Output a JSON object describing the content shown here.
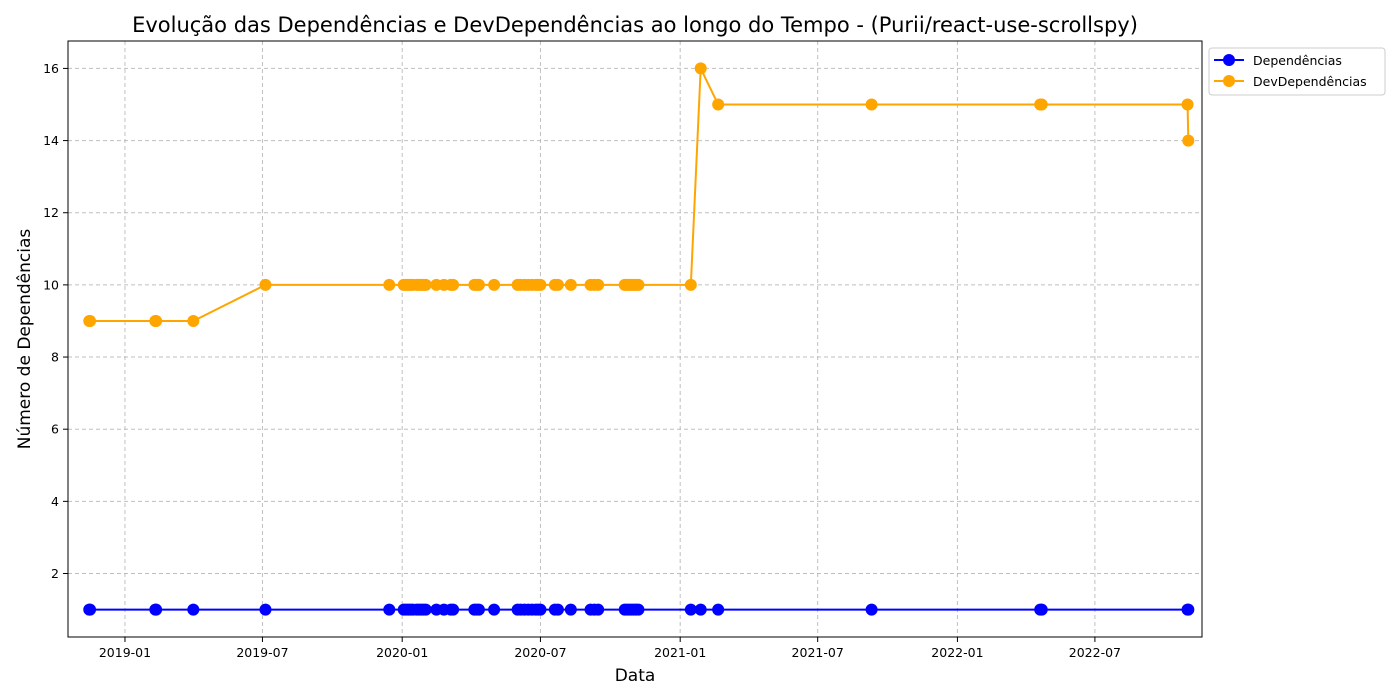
{
  "chart_data": {
    "type": "line",
    "title": "Evolução das Dependências e DevDependências ao longo do Tempo - (Purii/react-use-scrollspy)",
    "xlabel": "Data",
    "ylabel": "Número de Dependências",
    "x_axis_type": "date",
    "xlim": [
      "2018-10-18",
      "2022-11-19"
    ],
    "ylim": [
      0.24,
      16.76
    ],
    "x_ticks": [
      {
        "date": "2019-01-01",
        "label": "2019-01"
      },
      {
        "date": "2019-07-01",
        "label": "2019-07"
      },
      {
        "date": "2020-01-01",
        "label": "2020-01"
      },
      {
        "date": "2020-07-01",
        "label": "2020-07"
      },
      {
        "date": "2021-01-01",
        "label": "2021-01"
      },
      {
        "date": "2021-07-01",
        "label": "2021-07"
      },
      {
        "date": "2022-01-01",
        "label": "2022-01"
      },
      {
        "date": "2022-07-01",
        "label": "2022-07"
      }
    ],
    "y_ticks": [
      2,
      4,
      6,
      8,
      10,
      12,
      14,
      16
    ],
    "grid": true,
    "legend_position": "outside top-right",
    "x": [
      "2018-11-15",
      "2018-11-16",
      "2019-02-10",
      "2019-02-11",
      "2019-04-01",
      "2019-07-05",
      "2019-12-15",
      "2020-01-03",
      "2020-01-06",
      "2020-01-09",
      "2020-01-12",
      "2020-01-15",
      "2020-01-20",
      "2020-01-23",
      "2020-01-26",
      "2020-01-29",
      "2020-02-01",
      "2020-02-15",
      "2020-02-25",
      "2020-03-05",
      "2020-03-08",
      "2020-04-05",
      "2020-04-08",
      "2020-04-11",
      "2020-05-01",
      "2020-06-01",
      "2020-06-05",
      "2020-06-10",
      "2020-06-15",
      "2020-06-20",
      "2020-06-25",
      "2020-06-28",
      "2020-07-01",
      "2020-07-20",
      "2020-07-24",
      "2020-08-10",
      "2020-09-05",
      "2020-09-10",
      "2020-09-15",
      "2020-10-20",
      "2020-10-23",
      "2020-10-26",
      "2020-10-29",
      "2020-11-01",
      "2020-11-04",
      "2020-11-07",
      "2021-01-15",
      "2021-01-28",
      "2021-02-20",
      "2021-09-10",
      "2022-04-20",
      "2022-04-22",
      "2022-10-31",
      "2022-11-01"
    ],
    "series": [
      {
        "name": "Dependências",
        "color": "#0000ff",
        "values": [
          1,
          1,
          1,
          1,
          1,
          1,
          1,
          1,
          1,
          1,
          1,
          1,
          1,
          1,
          1,
          1,
          1,
          1,
          1,
          1,
          1,
          1,
          1,
          1,
          1,
          1,
          1,
          1,
          1,
          1,
          1,
          1,
          1,
          1,
          1,
          1,
          1,
          1,
          1,
          1,
          1,
          1,
          1,
          1,
          1,
          1,
          1,
          1,
          1,
          1,
          1,
          1,
          1,
          1
        ]
      },
      {
        "name": "DevDependências",
        "color": "#ffa500",
        "values": [
          9,
          9,
          9,
          9,
          9,
          10,
          10,
          10,
          10,
          10,
          10,
          10,
          10,
          10,
          10,
          10,
          10,
          10,
          10,
          10,
          10,
          10,
          10,
          10,
          10,
          10,
          10,
          10,
          10,
          10,
          10,
          10,
          10,
          10,
          10,
          10,
          10,
          10,
          10,
          10,
          10,
          10,
          10,
          10,
          10,
          10,
          10,
          16,
          15,
          15,
          15,
          15,
          15,
          14
        ]
      }
    ]
  }
}
